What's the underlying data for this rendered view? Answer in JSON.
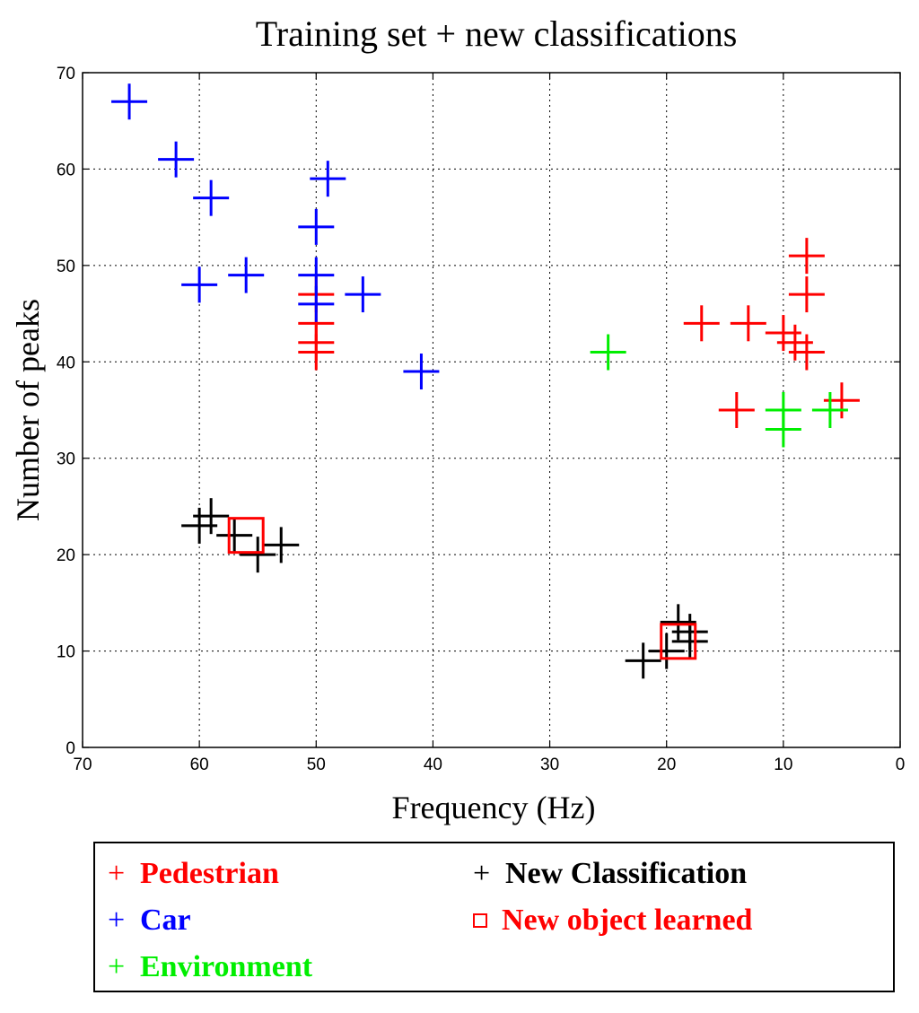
{
  "chart_data": {
    "type": "scatter",
    "title": "Training set + new classifications",
    "xlabel": "Frequency (Hz)",
    "ylabel": "Number of peaks",
    "xlim": [
      70,
      0
    ],
    "ylim": [
      0,
      70
    ],
    "x_reversed": true,
    "xticks": [
      "70",
      "60",
      "50",
      "40",
      "30",
      "20",
      "10",
      "0"
    ],
    "yticks": [
      "0",
      "10",
      "20",
      "30",
      "40",
      "50",
      "60",
      "70"
    ],
    "grid": true,
    "grid_style": "dotted",
    "legend_position": "below",
    "series": [
      {
        "name": "Pedestrian",
        "marker": "+",
        "color": "#ff0000",
        "points": [
          [
            50,
            47
          ],
          [
            50,
            44
          ],
          [
            50,
            42
          ],
          [
            50,
            41
          ],
          [
            17,
            44
          ],
          [
            13,
            44
          ],
          [
            10,
            43
          ],
          [
            8,
            51
          ],
          [
            8,
            47
          ],
          [
            9,
            42
          ],
          [
            8,
            41
          ],
          [
            14,
            35
          ],
          [
            5,
            36
          ]
        ]
      },
      {
        "name": "Car",
        "marker": "+",
        "color": "#0000ff",
        "points": [
          [
            66,
            67
          ],
          [
            62,
            61
          ],
          [
            59,
            57
          ],
          [
            49,
            59
          ],
          [
            50,
            54
          ],
          [
            60,
            48
          ],
          [
            56,
            49
          ],
          [
            50,
            49
          ],
          [
            50,
            46
          ],
          [
            46,
            47
          ],
          [
            41,
            39
          ]
        ]
      },
      {
        "name": "Environment",
        "marker": "+",
        "color": "#00ee00",
        "points": [
          [
            25,
            41
          ],
          [
            10,
            35
          ],
          [
            10,
            33
          ],
          [
            6,
            35
          ]
        ]
      },
      {
        "name": "New Classification",
        "marker": "+",
        "color": "#000000",
        "points": [
          [
            60,
            23
          ],
          [
            59,
            24
          ],
          [
            57,
            22
          ],
          [
            55,
            20
          ],
          [
            53,
            21
          ],
          [
            22,
            9
          ],
          [
            20,
            10
          ],
          [
            19,
            13
          ],
          [
            18,
            12
          ],
          [
            18,
            11
          ]
        ]
      },
      {
        "name": "New object learned",
        "marker": "square",
        "color": "#ff0000",
        "points": [
          [
            56,
            22
          ],
          [
            19,
            11
          ]
        ]
      }
    ]
  },
  "legend": {
    "items": [
      {
        "symbol": "+",
        "label": "Pedestrian",
        "color": "#ff0000"
      },
      {
        "symbol": "+",
        "label": "Car",
        "color": "#0000ff"
      },
      {
        "symbol": "+",
        "label": "Environment",
        "color": "#00ee00"
      },
      {
        "symbol": "+",
        "label": "New Classification",
        "color": "#000000"
      },
      {
        "symbol": "□",
        "label": "New object learned",
        "color": "#ff0000"
      }
    ]
  }
}
